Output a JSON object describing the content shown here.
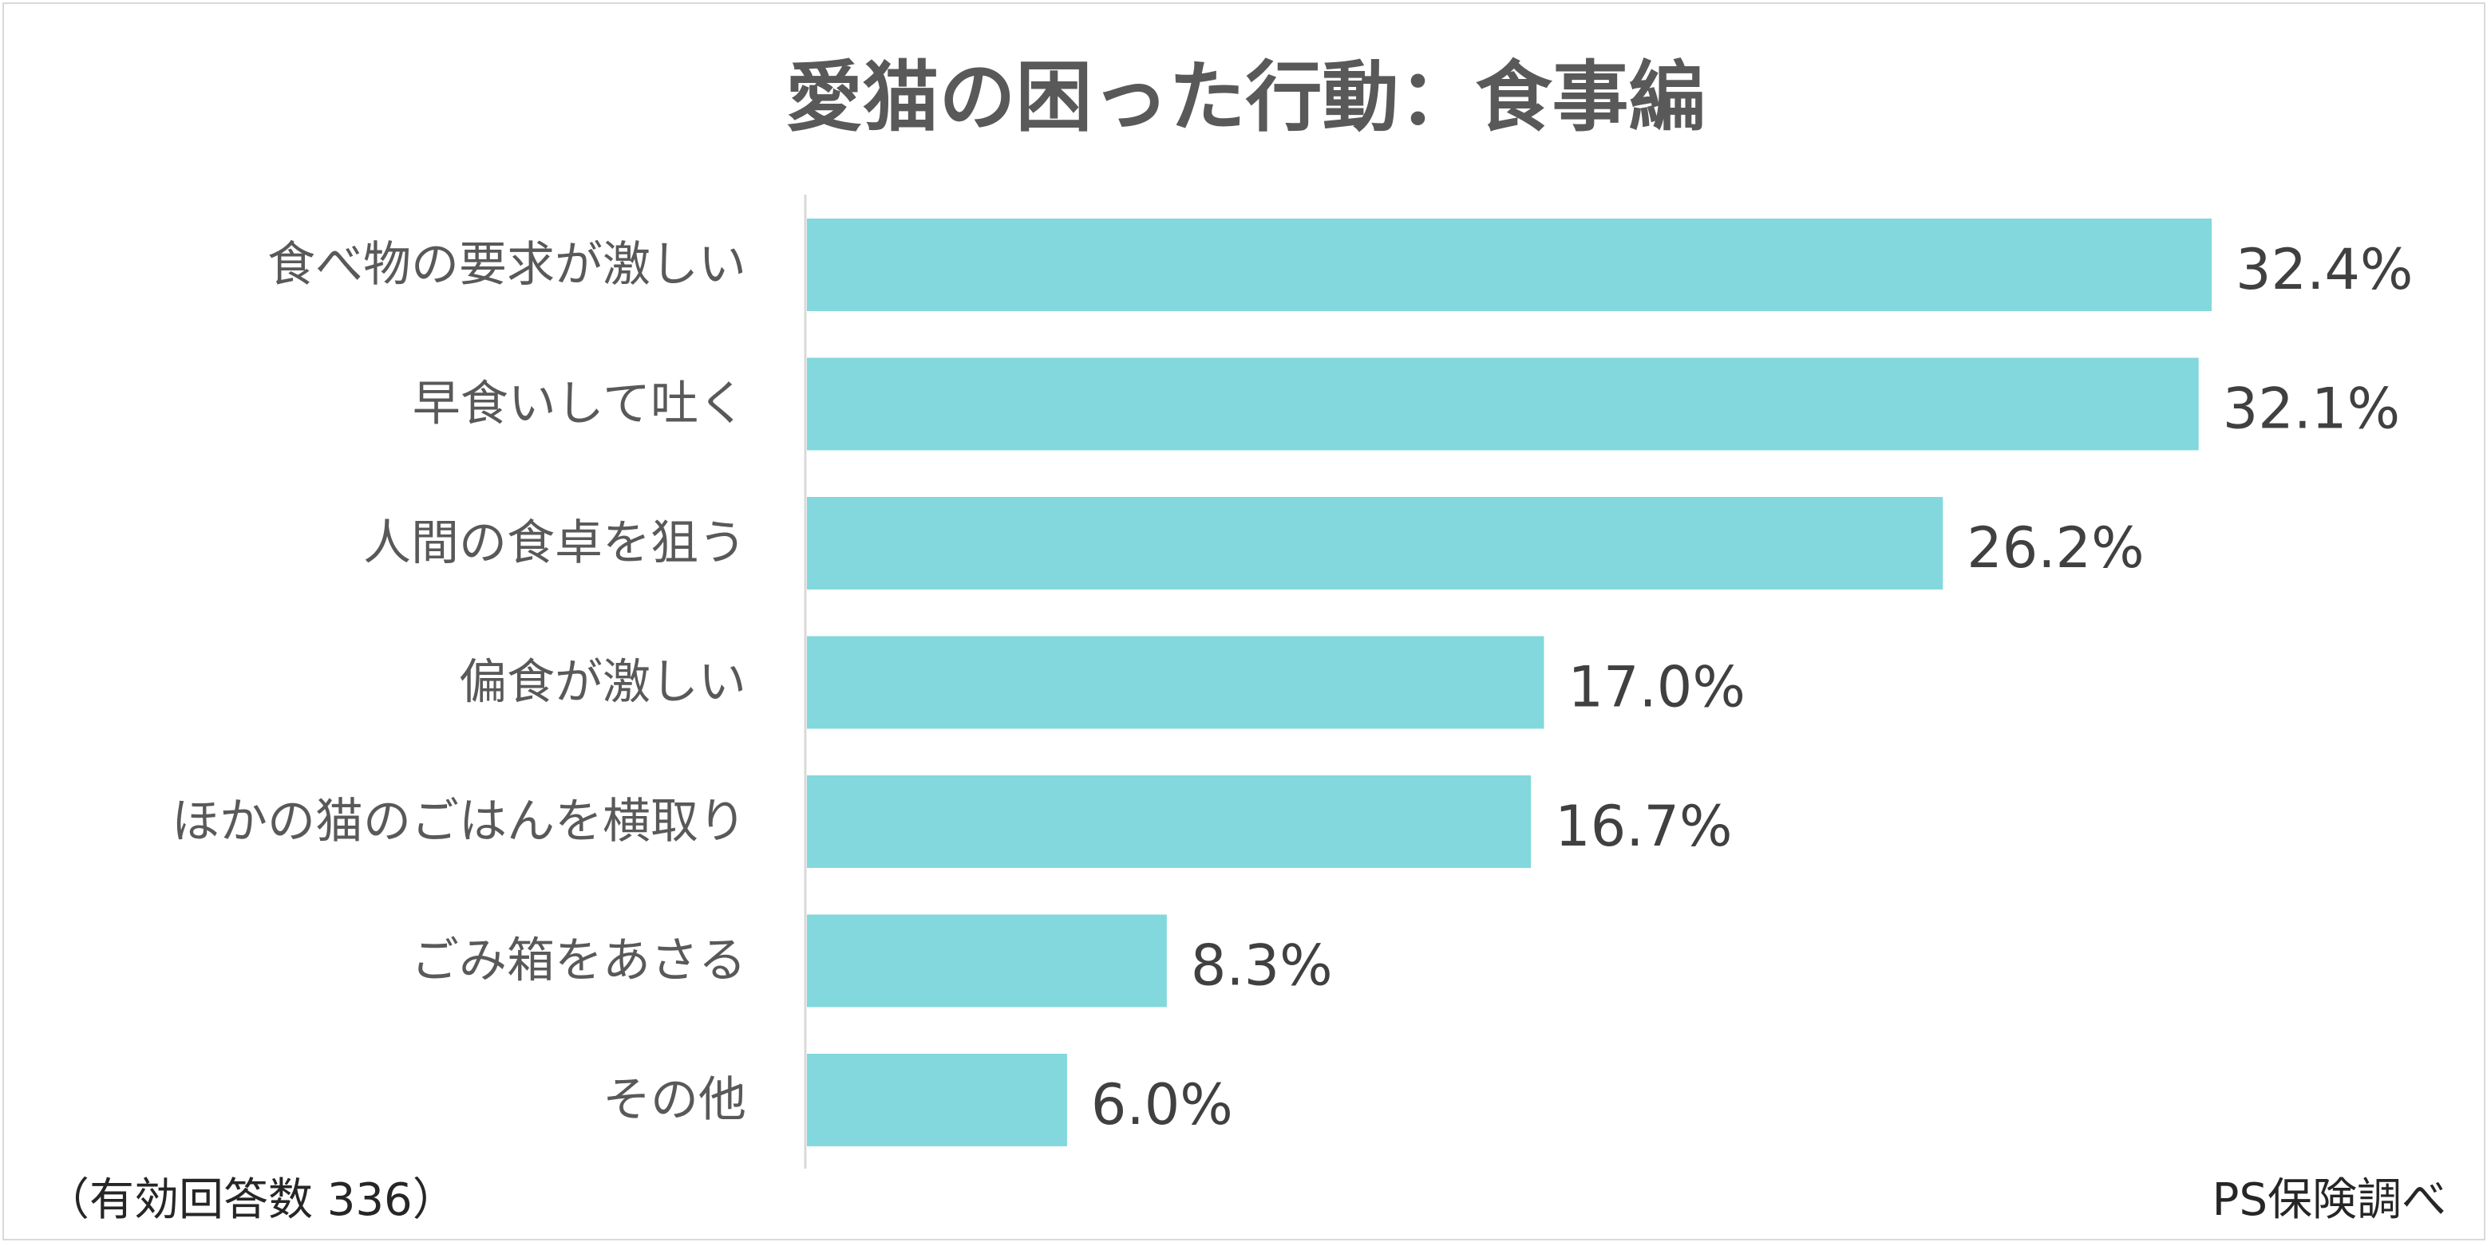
{
  "chart_data": {
    "type": "bar",
    "orientation": "horizontal",
    "title": "愛猫の困った行動：食事編",
    "categories": [
      "食べ物の要求が激しい",
      "早食いして吐く",
      "人間の食卓を狙う",
      "偏食が激しい",
      "ほかの猫のごはんを横取り",
      "ごみ箱をあさる",
      "その他"
    ],
    "values": [
      32.4,
      32.1,
      26.2,
      17.0,
      16.7,
      8.3,
      6.0
    ],
    "value_labels": [
      "32.4%",
      "32.1%",
      "26.2%",
      "17.0%",
      "16.7%",
      "8.3%",
      "6.0%"
    ],
    "unit": "%",
    "xlim": [
      0,
      32.4
    ],
    "grid": false,
    "legend": "none",
    "bar_color": "#82d8dc"
  },
  "footer": {
    "note": "（有効回答数 336）",
    "source": "PS保険調べ"
  }
}
